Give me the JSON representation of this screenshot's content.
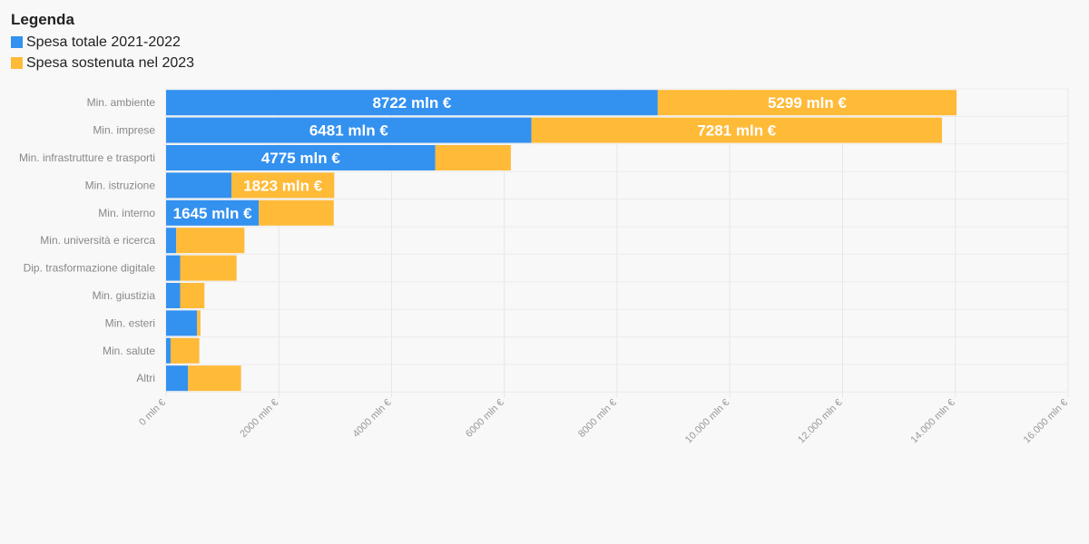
{
  "legend": {
    "title": "Legenda",
    "items": [
      {
        "label": "Spesa totale 2021-2022",
        "color": "#3391f0"
      },
      {
        "label": "Spesa sostenuta nel 2023",
        "color": "#ffba38"
      }
    ]
  },
  "chart_data": {
    "type": "bar",
    "orientation": "horizontal",
    "stacked": true,
    "categories": [
      "Min. ambiente",
      "Min. imprese",
      "Min. infrastrutture e trasporti",
      "Min. istruzione",
      "Min. interno",
      "Min. università e ricerca",
      "Dip. trasformazione digitale",
      "Min. giustizia",
      "Min. esteri",
      "Min. salute",
      "Altri"
    ],
    "series": [
      {
        "name": "Spesa totale 2021-2022",
        "color": "#3391f0",
        "values": [
          8722,
          6481,
          4775,
          1160,
          1645,
          180,
          250,
          250,
          550,
          80,
          390
        ],
        "labels": [
          "8722 mln €",
          "6481 mln €",
          "4775 mln €",
          "",
          "1645 mln €",
          "",
          "",
          "",
          "",
          "",
          ""
        ]
      },
      {
        "name": "Spesa sostenuta nel 2023",
        "color": "#ffba38",
        "values": [
          5299,
          7281,
          1340,
          1823,
          1330,
          1210,
          1000,
          430,
          60,
          510,
          940
        ],
        "labels": [
          "5299 mln €",
          "7281 mln €",
          "",
          "1823 mln €",
          "",
          "",
          "",
          "",
          "",
          "",
          ""
        ]
      }
    ],
    "xlim": [
      0,
      16000
    ],
    "ticks": [
      {
        "value": 0,
        "label": "0 mln €"
      },
      {
        "value": 2000,
        "label": "2000 mln €"
      },
      {
        "value": 4000,
        "label": "4000 mln €"
      },
      {
        "value": 6000,
        "label": "6000 mln €"
      },
      {
        "value": 8000,
        "label": "8000 mln €"
      },
      {
        "value": 10000,
        "label": "10.000 mln €"
      },
      {
        "value": 12000,
        "label": "12.000 mln €"
      },
      {
        "value": 14000,
        "label": "14.000 mln €"
      },
      {
        "value": 16000,
        "label": "16.000 mln €"
      }
    ],
    "grid": true,
    "legend_position": "top-left"
  }
}
